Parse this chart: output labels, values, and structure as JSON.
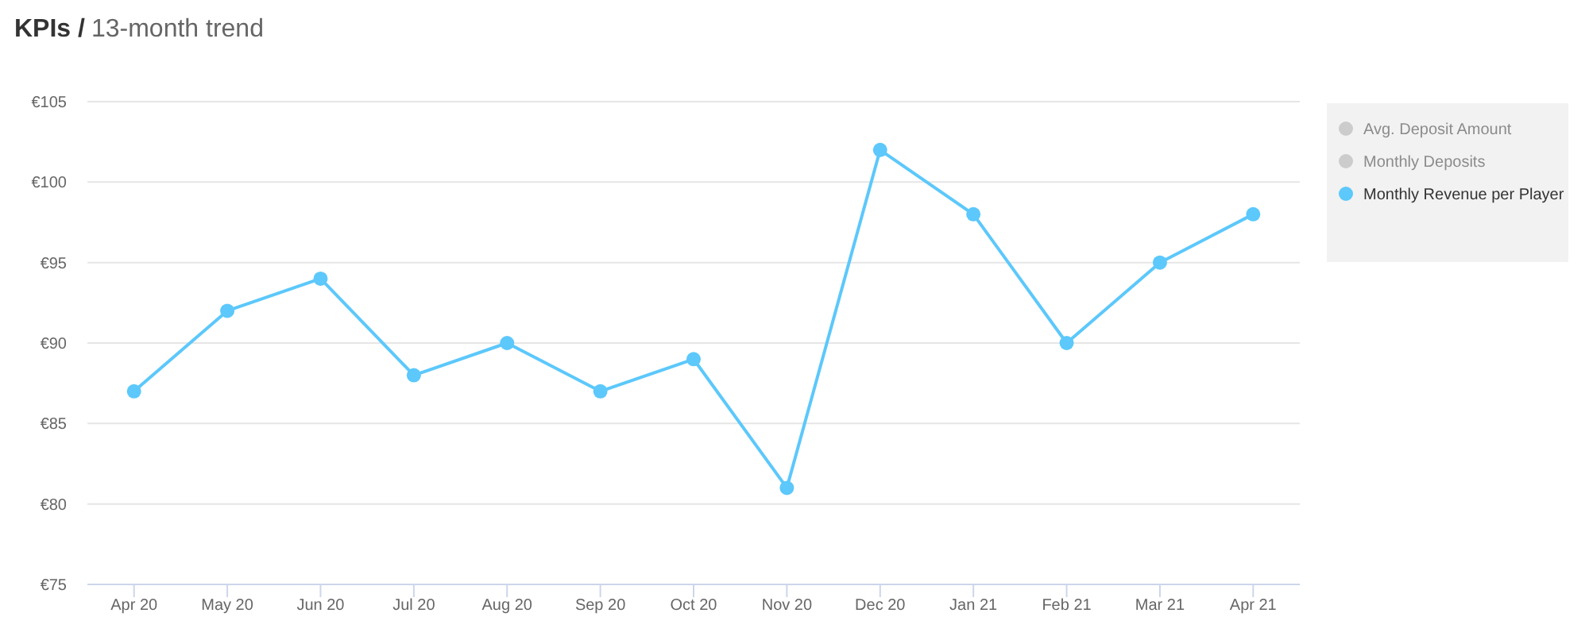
{
  "chart_data": {
    "type": "line",
    "title": "KPIs /",
    "subtitle": "13-month trend",
    "categories": [
      "Apr 20",
      "May 20",
      "Jun 20",
      "Jul 20",
      "Aug 20",
      "Sep 20",
      "Oct 20",
      "Nov 20",
      "Dec 20",
      "Jan 21",
      "Feb 21",
      "Mar 21",
      "Apr 21"
    ],
    "series": [
      {
        "name": "Avg. Deposit Amount",
        "color": "#cccccc",
        "values": [
          null,
          null,
          null,
          null,
          null,
          null,
          null,
          null,
          null,
          null,
          null,
          null,
          null
        ]
      },
      {
        "name": "Monthly Deposits",
        "color": "#cccccc",
        "values": [
          null,
          null,
          null,
          null,
          null,
          null,
          null,
          null,
          null,
          null,
          null,
          null,
          null
        ]
      },
      {
        "name": "Monthly Revenue per Player",
        "color": "#5cc8fb",
        "values": [
          87,
          92,
          94,
          88,
          90,
          87,
          89,
          81,
          102,
          98,
          90,
          95,
          98
        ]
      }
    ],
    "ylim": [
      75,
      105
    ],
    "yticks": [
      {
        "value": 75,
        "label": "€75"
      },
      {
        "value": 80,
        "label": "€80"
      },
      {
        "value": 85,
        "label": "€85"
      },
      {
        "value": 90,
        "label": "€90"
      },
      {
        "value": 95,
        "label": "€95"
      },
      {
        "value": 100,
        "label": "€100"
      },
      {
        "value": 105,
        "label": "€105"
      }
    ],
    "grid": "y",
    "legend": "top right",
    "marker": "circle",
    "line_style": "solid"
  }
}
